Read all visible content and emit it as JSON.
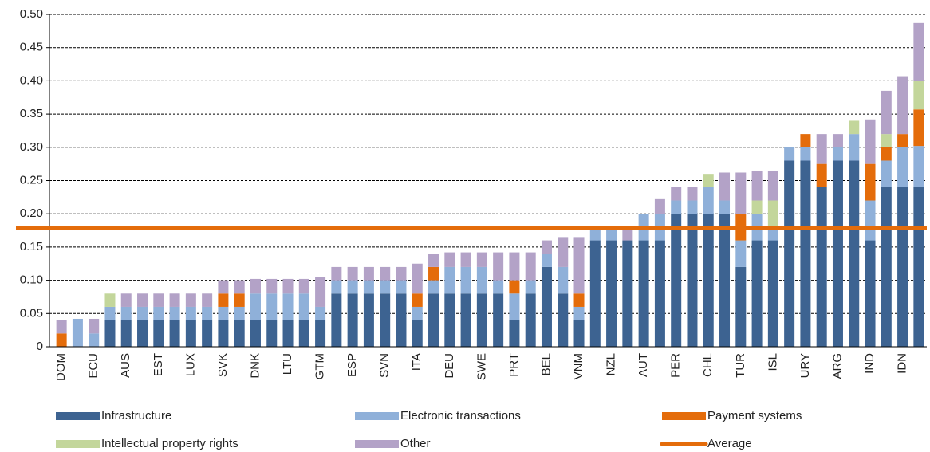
{
  "chart_data": {
    "type": "stacked_bar",
    "categories": [
      "DOM",
      null,
      "ECU",
      null,
      "AUS",
      null,
      "EST",
      null,
      "LUX",
      null,
      "SVK",
      null,
      "DNK",
      null,
      "LTU",
      null,
      "GTM",
      null,
      "ESP",
      null,
      "SVN",
      null,
      "ITA",
      null,
      "DEU",
      null,
      "SWE",
      null,
      "PRT",
      null,
      "BEL",
      null,
      "VNM",
      null,
      "NZL",
      null,
      "AUT",
      null,
      "PER",
      null,
      "CHL",
      null,
      "TUR",
      null,
      "ISL",
      null,
      "URY",
      null,
      "ARG",
      null,
      "IND",
      null,
      "IDN",
      null
    ],
    "series": [
      {
        "name": "Infrastructure",
        "color": "#3d6391",
        "values": [
          0,
          0,
          0,
          0.04,
          0.04,
          0.04,
          0.04,
          0.04,
          0.04,
          0.04,
          0.04,
          0.04,
          0.04,
          0.04,
          0.04,
          0.04,
          0.04,
          0.08,
          0.08,
          0.08,
          0.08,
          0.08,
          0.04,
          0.08,
          0.08,
          0.08,
          0.08,
          0.08,
          0.04,
          0.08,
          0.12,
          0.08,
          0.04,
          0.16,
          0.16,
          0.16,
          0.16,
          0.16,
          0.2,
          0.2,
          0.2,
          0.2,
          0.12,
          0.16,
          0.16,
          0.28,
          0.28,
          0.24,
          0.28,
          0.28,
          0.16,
          0.24,
          0.24,
          0.24
        ]
      },
      {
        "name": "Electronic transactions",
        "color": "#8fb0d9",
        "values": [
          0,
          0.042,
          0.02,
          0.02,
          0.02,
          0.02,
          0.02,
          0.02,
          0.02,
          0.02,
          0.02,
          0.02,
          0.04,
          0.04,
          0.04,
          0.04,
          0.02,
          0.02,
          0.02,
          0.02,
          0.02,
          0.02,
          0.02,
          0.02,
          0.04,
          0.04,
          0.04,
          0.02,
          0.04,
          0.02,
          0.02,
          0.04,
          0.02,
          0.02,
          0.02,
          0,
          0.04,
          0.04,
          0.02,
          0.02,
          0.04,
          0.02,
          0.04,
          0.04,
          0.02,
          0.02,
          0.02,
          0,
          0.02,
          0.04,
          0.06,
          0.04,
          0.06,
          0.062
        ]
      },
      {
        "name": "Payment systems",
        "color": "#e46c0a",
        "values": [
          0.02,
          0,
          0,
          0,
          0,
          0,
          0,
          0,
          0,
          0,
          0.02,
          0.02,
          0,
          0,
          0,
          0,
          0,
          0,
          0,
          0,
          0,
          0,
          0.02,
          0.02,
          0,
          0,
          0,
          0,
          0.02,
          0,
          0,
          0,
          0.02,
          0,
          0,
          0,
          0,
          0,
          0,
          0,
          0,
          0,
          0.04,
          0,
          0,
          0,
          0.02,
          0.035,
          0,
          0,
          0.055,
          0.02,
          0.02,
          0.055
        ]
      },
      {
        "name": "Intellectual property rights",
        "color": "#c3d69b",
        "values": [
          0,
          0,
          0,
          0.02,
          0,
          0,
          0,
          0,
          0,
          0,
          0,
          0,
          0,
          0,
          0,
          0,
          0,
          0,
          0,
          0,
          0,
          0,
          0,
          0,
          0,
          0,
          0,
          0,
          0,
          0,
          0,
          0,
          0,
          0,
          0,
          0,
          0,
          0,
          0,
          0,
          0.02,
          0,
          0,
          0.02,
          0.04,
          0,
          0,
          0,
          0,
          0.02,
          0,
          0.02,
          0,
          0.043
        ]
      },
      {
        "name": "Other",
        "color": "#b3a2c7",
        "values": [
          0.02,
          0,
          0.022,
          0,
          0.02,
          0.02,
          0.02,
          0.02,
          0.02,
          0.02,
          0.02,
          0.02,
          0.022,
          0.022,
          0.022,
          0.022,
          0.045,
          0.02,
          0.02,
          0.02,
          0.02,
          0.02,
          0.045,
          0.02,
          0.022,
          0.022,
          0.022,
          0.042,
          0.042,
          0.042,
          0.02,
          0.045,
          0.085,
          0,
          0,
          0.02,
          0,
          0.022,
          0.02,
          0.02,
          0,
          0.042,
          0.062,
          0.045,
          0.045,
          0,
          0,
          0.045,
          0.02,
          0,
          0.067,
          0.065,
          0.087,
          0.087
        ]
      }
    ],
    "average": {
      "name": "Average",
      "color": "#e46c0a",
      "value": 0.178
    },
    "ylim": [
      0,
      0.5
    ],
    "yticks": [
      0,
      0.05,
      {
        "value": 0.1,
        "label": "0.10"
      },
      0.15,
      {
        "value": 0.2,
        "label": "0.20"
      },
      0.25,
      {
        "value": 0.3,
        "label": "0.30"
      },
      0.35,
      {
        "value": 0.4,
        "label": "0.40"
      },
      0.45,
      {
        "value": 0.5,
        "label": "0.50"
      }
    ],
    "grid": true,
    "legend": "bottom"
  }
}
